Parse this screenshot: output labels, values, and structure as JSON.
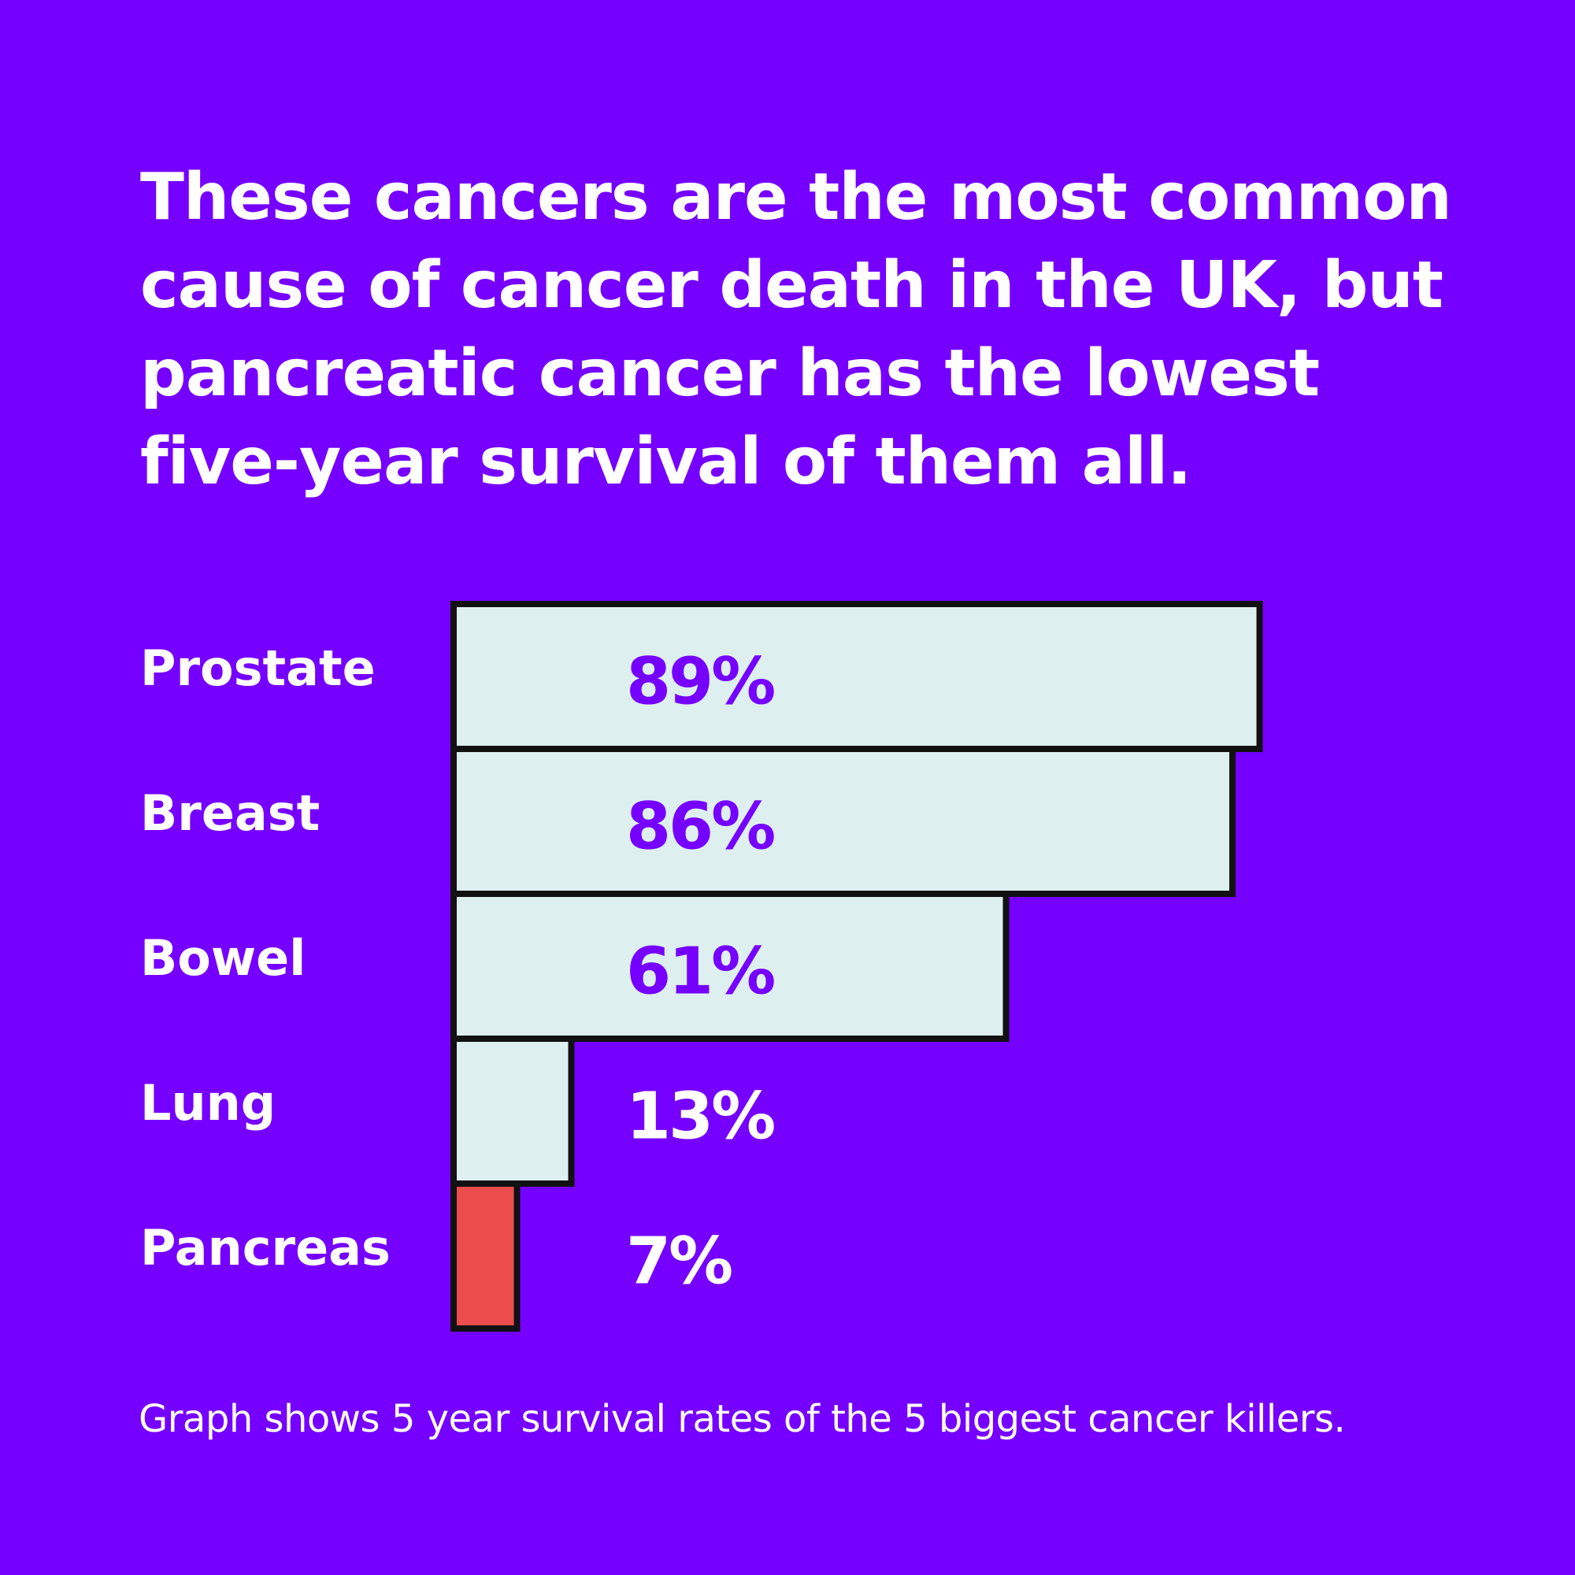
{
  "headline": "These cancers are the most common cause of cancer death in the UK, but pancreatic cancer has the lowest five-year survival of them all.",
  "footnote": "Graph shows 5 year survival rates of the 5 biggest cancer killers.",
  "colors": {
    "background": "#7500ff",
    "bar_fill": "#deefef",
    "highlight_fill": "#ee4d4d",
    "bar_outline": "#111111",
    "value_text_inside": "#7500ff",
    "value_text_outside": "#ffffff",
    "label_text": "#ffffff"
  },
  "chart_data": {
    "type": "bar",
    "orientation": "horizontal",
    "categories": [
      "Prostate",
      "Breast",
      "Bowel",
      "Lung",
      "Pancreas"
    ],
    "values": [
      89,
      86,
      61,
      13,
      7
    ],
    "value_labels": [
      "89%",
      "86%",
      "61%",
      "13%",
      "7%"
    ],
    "highlight": "Pancreas",
    "unit": "%",
    "xlim": [
      0,
      100
    ]
  }
}
